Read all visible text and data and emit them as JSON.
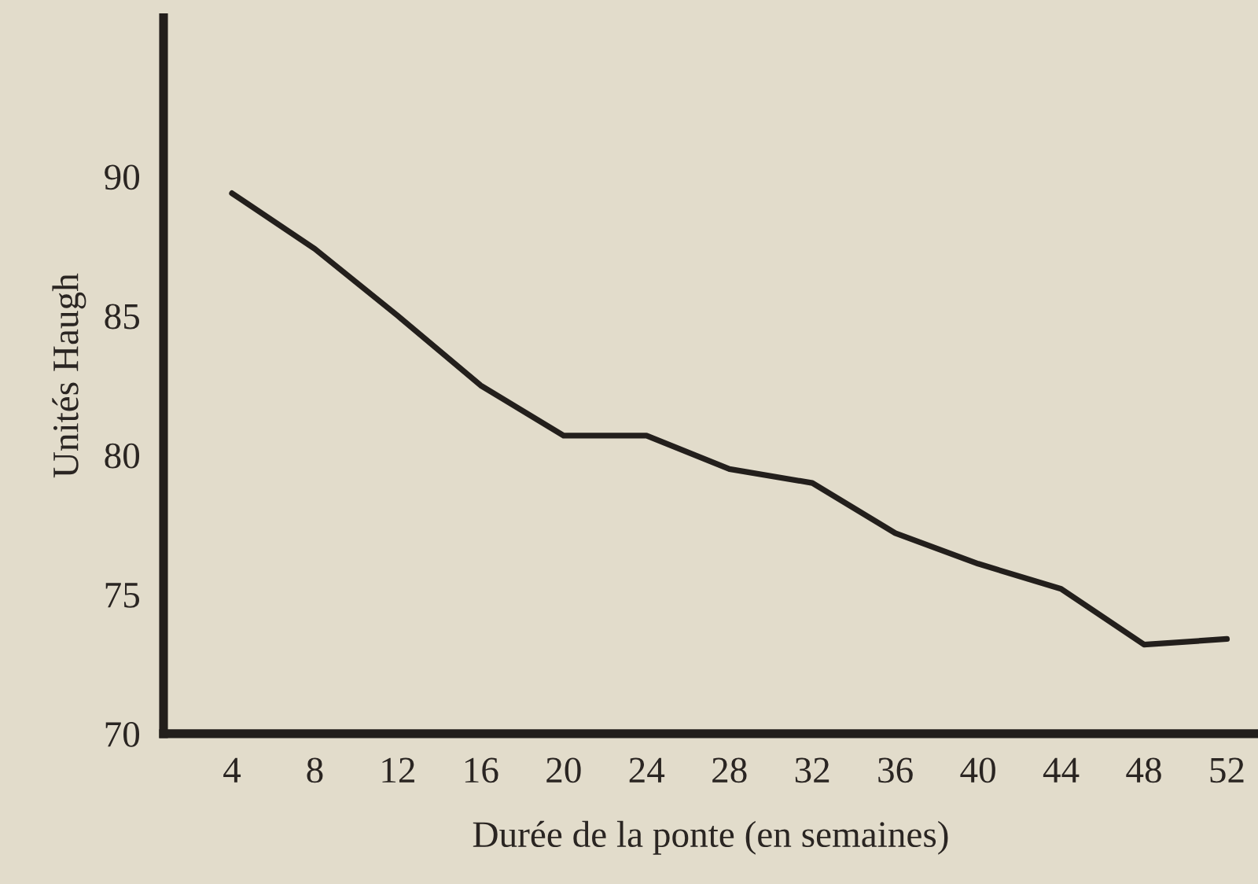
{
  "chart_data": {
    "type": "line",
    "xlabel": "Durée de la ponte (en semaines)",
    "ylabel": "Unités Haugh",
    "x": [
      4,
      8,
      12,
      16,
      20,
      24,
      28,
      32,
      36,
      40,
      44,
      48,
      52
    ],
    "series": [
      {
        "color": "#231f1c",
        "values": [
          89.4,
          87.4,
          85.0,
          82.5,
          80.7,
          80.7,
          79.5,
          79.0,
          77.2,
          76.1,
          75.2,
          73.2,
          73.4
        ]
      }
    ],
    "xlim": [
      0.7,
      53.5
    ],
    "ylim": [
      70,
      95.7
    ],
    "xticks": [
      4,
      8,
      12,
      16,
      20,
      24,
      28,
      32,
      36,
      40,
      44,
      48,
      52
    ],
    "yticks": [
      70,
      75,
      80,
      85,
      90
    ],
    "grid": false,
    "marker": "none",
    "line_style": "solid"
  }
}
